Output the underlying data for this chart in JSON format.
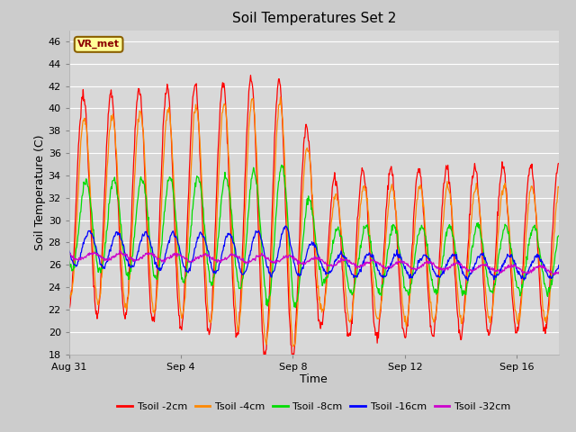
{
  "title": "Soil Temperatures Set 2",
  "xlabel": "Time",
  "ylabel": "Soil Temperature (C)",
  "ylim": [
    18,
    47
  ],
  "yticks": [
    18,
    20,
    22,
    24,
    26,
    28,
    30,
    32,
    34,
    36,
    38,
    40,
    42,
    44,
    46
  ],
  "fig_bg_color": "#cccccc",
  "plot_bg_color": "#d8d8d8",
  "grid_color": "#ffffff",
  "series_colors": {
    "Tsoil -2cm": "#ff0000",
    "Tsoil -4cm": "#ff8800",
    "Tsoil -8cm": "#00dd00",
    "Tsoil -16cm": "#0000ff",
    "Tsoil -32cm": "#cc00cc"
  },
  "xtick_labels": [
    "Aug 31",
    "Sep 4",
    "Sep 8",
    "Sep 12",
    "Sep 16"
  ],
  "xtick_positions": [
    0,
    4,
    8,
    12,
    16
  ],
  "annotation_text": "VR_met",
  "n_days": 17.5,
  "n_pts_per_day": 48
}
